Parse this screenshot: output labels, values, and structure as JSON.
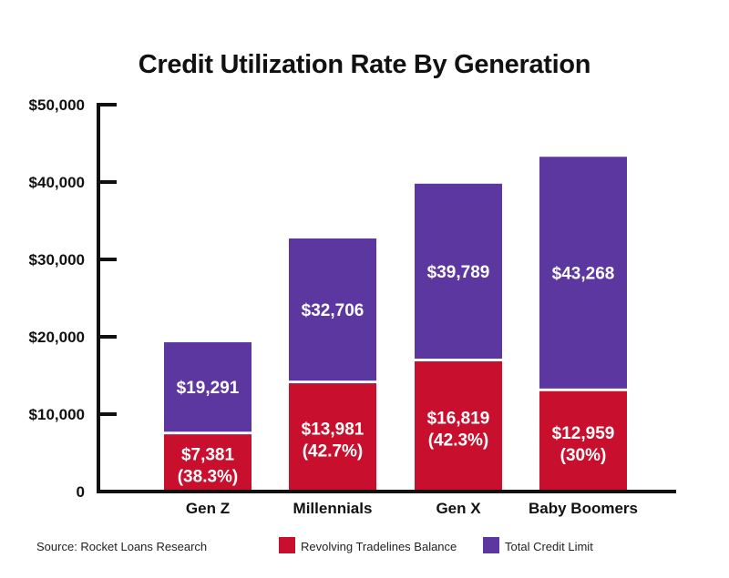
{
  "chart_data": {
    "type": "bar",
    "title": "Credit Utilization Rate By Generation",
    "categories": [
      "Gen Z",
      "Millennials",
      "Gen X",
      "Baby Boomers"
    ],
    "series": [
      {
        "name": "Revolving Tradelines Balance",
        "color": "#c8102e",
        "values": [
          7381,
          13981,
          16819,
          12959
        ],
        "labels": [
          "$7,381",
          "$13,981",
          "$16,819",
          "$12,959"
        ],
        "sublabels": [
          "(38.3%)",
          "(42.7%)",
          "(42.3%)",
          "(30%)"
        ]
      },
      {
        "name": "Total Credit Limit",
        "color": "#5c37a0",
        "values": [
          19291,
          32706,
          39789,
          43268
        ],
        "labels": [
          "$19,291",
          "$32,706",
          "$39,789",
          "$43,268"
        ]
      }
    ],
    "yticks": [
      0,
      10000,
      20000,
      30000,
      40000,
      50000
    ],
    "ytick_labels": [
      "0",
      "$10,000",
      "$20,000",
      "$30,000",
      "$40,000",
      "$50,000"
    ],
    "ylim": [
      0,
      50000
    ],
    "grid": false,
    "legend_position": "bottom",
    "source": "Source: Rocket Loans Research"
  }
}
